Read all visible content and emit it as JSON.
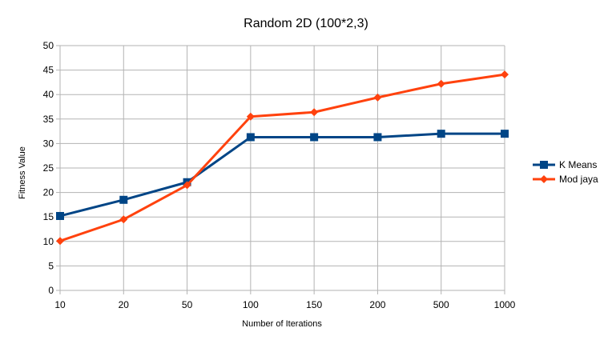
{
  "chart_data": {
    "type": "line",
    "title": "Random 2D (100*2,3)",
    "xlabel": "Number of Iterations",
    "ylabel": "Fitness Value",
    "categories": [
      "10",
      "20",
      "50",
      "100",
      "150",
      "200",
      "500",
      "1000"
    ],
    "ylim": [
      0,
      50
    ],
    "yticks": [
      0,
      5,
      10,
      15,
      20,
      25,
      30,
      35,
      40,
      45,
      50
    ],
    "grid": true,
    "legend_position": "right",
    "series": [
      {
        "name": "K Means",
        "color": "#004586",
        "marker": "square",
        "values": [
          15.2,
          18.5,
          22.1,
          31.3,
          31.3,
          31.3,
          32.0,
          32.0
        ]
      },
      {
        "name": "Mod jaya",
        "color": "#ff420e",
        "marker": "diamond",
        "values": [
          10.1,
          14.5,
          21.5,
          35.5,
          36.4,
          39.4,
          42.2,
          44.1
        ]
      }
    ]
  }
}
